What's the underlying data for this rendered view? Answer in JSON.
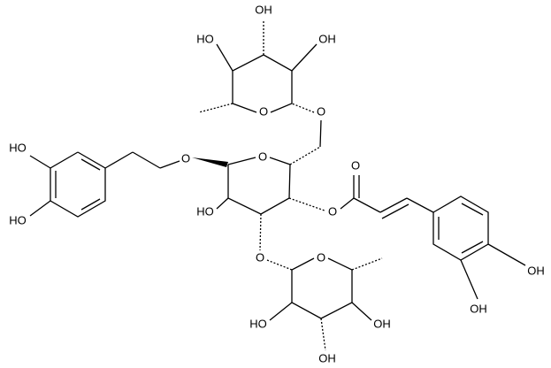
{
  "labels": [
    "OH",
    "HO",
    "OH",
    "O",
    "O",
    "O",
    "O",
    "HO",
    "HO",
    "HO",
    "O",
    "O",
    "O",
    "OH",
    "OH",
    "O",
    "HO",
    "OH",
    "OH"
  ]
}
